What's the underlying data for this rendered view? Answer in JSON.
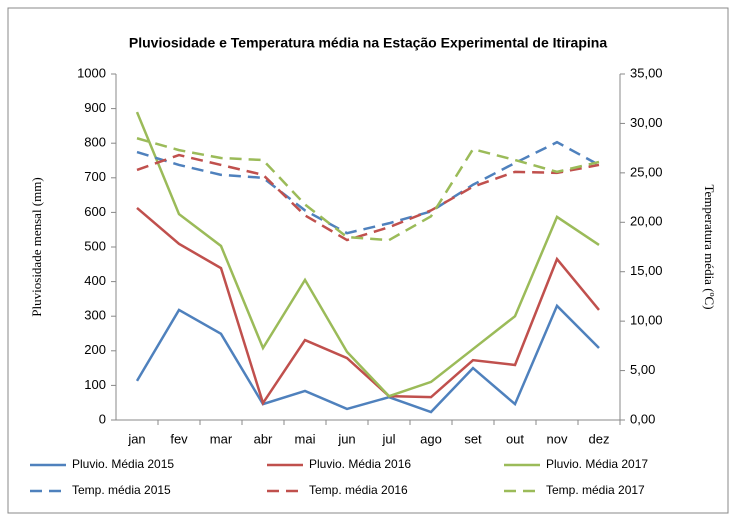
{
  "chart_data": {
    "type": "line",
    "title": "Pluviosidade e Temperatura média na Estação Experimental de Itirapina",
    "ylabel": "Pluviosidade mensal (mm)",
    "y2label": "Temperatura média (ºC)",
    "categories": [
      "jan",
      "fev",
      "mar",
      "abr",
      "mai",
      "jun",
      "jul",
      "ago",
      "set",
      "out",
      "nov",
      "dez"
    ],
    "ylim": [
      0,
      1000
    ],
    "yticks": [
      0,
      100,
      200,
      300,
      400,
      500,
      600,
      700,
      800,
      900,
      1000
    ],
    "y2lim": [
      0,
      35
    ],
    "y2ticks": [
      {
        "value": 0,
        "label": "0,00"
      },
      {
        "value": 5,
        "label": "5,00"
      },
      {
        "value": 10,
        "label": "10,00"
      },
      {
        "value": 15,
        "label": "15,00"
      },
      {
        "value": 20,
        "label": "20,00"
      },
      {
        "value": 25,
        "label": "25,00"
      },
      {
        "value": 30,
        "label": "30,00"
      },
      {
        "value": 35,
        "label": "35,00"
      }
    ],
    "grid": false,
    "legend": "bottom",
    "series": [
      {
        "name": "Pluvio. Média 2015",
        "color": "#4f81bd",
        "line_style": "solid",
        "values": [
          113,
          318,
          249,
          46,
          84,
          32,
          66,
          23,
          150,
          46,
          330,
          208
        ]
      },
      {
        "name": "Pluvio. Média 2016",
        "color": "#c0504d",
        "line_style": "solid",
        "values": [
          613,
          509,
          439,
          49,
          231,
          179,
          69,
          66,
          173,
          159,
          465,
          318
        ]
      },
      {
        "name": "Pluvio. Média 2017",
        "color": "#9bbb59",
        "line_style": "solid",
        "values": [
          890,
          595,
          503,
          208,
          405,
          197,
          69,
          110,
          205,
          300,
          587,
          506
        ]
      },
      {
        "name": "Temp. média 2015",
        "color": "#4f81bd",
        "line_style": "dashed",
        "axis": "y2",
        "values": [
          27.1,
          25.8,
          24.8,
          24.5,
          21.2,
          18.9,
          19.9,
          21.1,
          23.8,
          26.0,
          28.1,
          25.8
        ]
      },
      {
        "name": "Temp. média 2016",
        "color": "#c0504d",
        "line_style": "dashed",
        "axis": "y2",
        "values": [
          25.3,
          26.8,
          25.8,
          24.8,
          20.7,
          18.2,
          19.5,
          21.2,
          23.6,
          25.1,
          25.0,
          25.8
        ]
      },
      {
        "name": "Temp. média 2017",
        "color": "#9bbb59",
        "line_style": "dashed",
        "axis": "y2",
        "values": [
          28.5,
          27.3,
          26.5,
          26.3,
          21.8,
          18.5,
          18.2,
          20.6,
          27.4,
          26.3,
          25.1,
          26.1
        ]
      }
    ]
  }
}
